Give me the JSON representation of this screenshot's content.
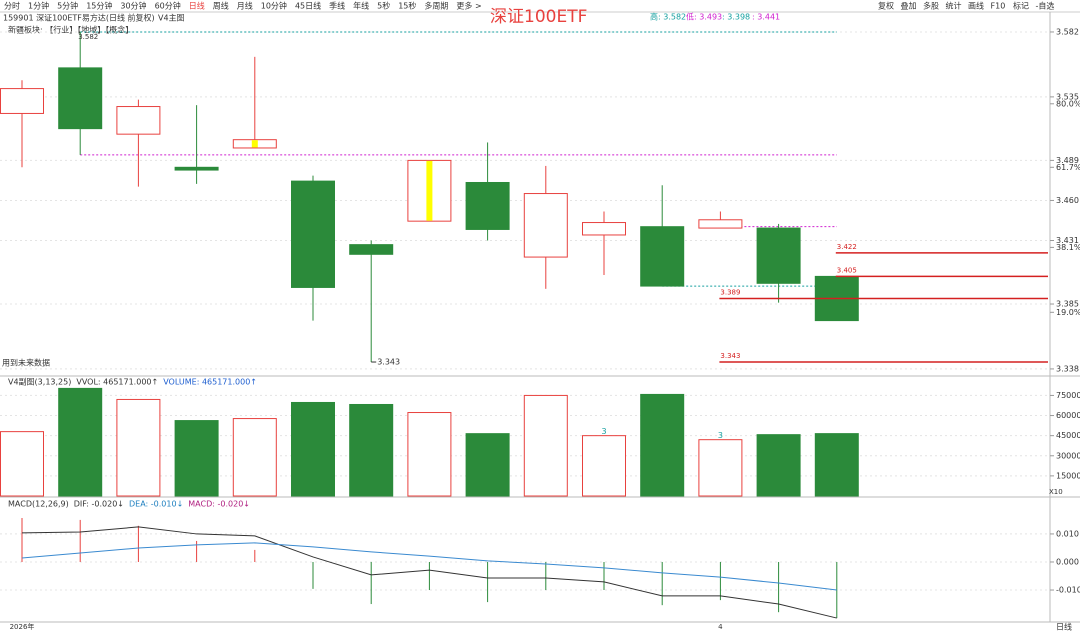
{
  "toolbar": {
    "left": [
      "分时",
      "1分钟",
      "5分钟",
      "15分钟",
      "30分钟",
      "60分钟",
      "日线",
      "周线",
      "月线",
      "10分钟",
      "45日线",
      "季线",
      "年线",
      "5秒",
      "15秒",
      "多周期",
      "更多 >"
    ],
    "active": 6,
    "right": [
      "复权",
      "叠加",
      "多股",
      "统计",
      "画线",
      "F10",
      "标记",
      "-自选"
    ]
  },
  "overlay_title": "深证100ETF",
  "stats": [
    {
      "value": 3.582,
      "label": "高: 3.582",
      "color": "#16a0a0"
    },
    {
      "value": 3.493,
      "label": "低: 3.493",
      "color": "#d020d0"
    },
    {
      "value": 3.398,
      "label": ": 3.398",
      "color": "#16a0a0"
    },
    {
      "value": 3.441,
      "label": ": 3.441",
      "color": "#d020d0"
    }
  ],
  "header": {
    "code_line": "159901 深证100ETF易方达(日线 前复权)",
    "indicator": "V4主图",
    "sector": "新疆板块: 【行业】【地域】【概念】",
    "note": "用到未来数据"
  },
  "chart_data": [
    {
      "type": "candlestick",
      "open": [
        3.523,
        3.556,
        3.508,
        3.484,
        3.498,
        3.474,
        3.428,
        3.445,
        3.473,
        3.419,
        3.435,
        3.441,
        3.44,
        3.44,
        3.405
      ],
      "high": [
        3.547,
        3.582,
        3.533,
        3.529,
        3.564,
        3.478,
        3.431,
        3.489,
        3.502,
        3.485,
        3.452,
        3.471,
        3.452,
        3.443,
        3.405
      ],
      "low": [
        3.484,
        3.493,
        3.47,
        3.472,
        3.498,
        3.373,
        3.343,
        3.445,
        3.431,
        3.396,
        3.406,
        3.398,
        3.44,
        3.386,
        3.373
      ],
      "close": [
        3.541,
        3.512,
        3.528,
        3.482,
        3.504,
        3.397,
        3.421,
        3.489,
        3.439,
        3.465,
        3.444,
        3.398,
        3.446,
        3.4,
        3.373
      ],
      "up_color": "#e8413e",
      "down_color": "#2b8a3a",
      "highlight_color": "#ffff00",
      "ylim": [
        3.3336,
        3.5856
      ],
      "yticks": [
        3.338,
        3.385,
        3.431,
        {
          "value": 3.46,
          "label": "3.460"
        },
        3.489,
        3.535,
        3.582
      ],
      "pct_ticks": [
        {
          "value": 3.379,
          "label": "19.0%"
        },
        {
          "value": 3.426,
          "label": "38.1%"
        },
        {
          "value": 3.484,
          "label": "61.7%"
        },
        {
          "value": 3.53,
          "label": "80.0%"
        }
      ],
      "levels": [
        3.422,
        3.405,
        3.389,
        3.343
      ],
      "level_color": "#d42020",
      "grid": true
    },
    {
      "type": "bar",
      "header": [
        {
          "text": "V4副图(3,13,25)",
          "color": "#333333"
        },
        {
          "text": "VVOL: 465171.000↑",
          "color": "#333333"
        },
        {
          "text": "VOLUME: 465171.000↑",
          "color": "#2060d0"
        }
      ],
      "values": [
        48000,
        80250,
        72000,
        56250,
        57750,
        69750,
        68250,
        62250,
        46500,
        75000,
        45000,
        75750,
        42000,
        45750,
        46517
      ],
      "ylim": [
        0,
        88000
      ],
      "yticks": [
        15000,
        30000,
        45000,
        60000,
        75000
      ],
      "unit_label": "X10",
      "annotations": [
        "3",
        "3"
      ],
      "grid": true
    },
    {
      "type": "macd",
      "header": [
        {
          "text": "MACD(12,26,9)",
          "color": "#333333"
        },
        {
          "text": "DIF: -0.020↓",
          "color": "#333333"
        },
        {
          "text": "DEA: -0.010↓",
          "color": "#2080c0"
        },
        {
          "text": "MACD: -0.020↓",
          "color": "#b02080"
        }
      ],
      "categories": [
        "2026年",
        null,
        null,
        null,
        null,
        null,
        null,
        null,
        null,
        null,
        null,
        null,
        "4",
        null,
        null
      ],
      "series": [
        {
          "color": "#333333",
          "values": [
            0.0104,
            0.0107,
            0.0125,
            0.01,
            0.0093,
            0.0018,
            -0.0046,
            -0.0029,
            -0.0057,
            -0.0057,
            -0.0071,
            -0.0121,
            -0.0121,
            -0.015,
            -0.02
          ]
        },
        {
          "color": "#3a8ad0",
          "values": [
            0.0014,
            0.0032,
            0.005,
            0.0061,
            0.0068,
            0.0054,
            0.0036,
            0.0021,
            0.0004,
            -0.0007,
            -0.0021,
            -0.0039,
            -0.0054,
            -0.0075,
            -0.01
          ]
        }
      ],
      "bars": {
        "up_color": "#e8413e",
        "down_color": "#2b8a3a",
        "values": [
          0.0157,
          0.015,
          0.0129,
          0.0075,
          0.0043,
          -0.0096,
          -0.015,
          -0.01,
          -0.0143,
          -0.01,
          -0.01,
          -0.0154,
          -0.0136,
          -0.0179,
          -0.02
        ]
      },
      "ylim": [
        -0.0214,
        0.0221
      ],
      "yticks": [
        {
          "value": -0.01,
          "label": "-0.010"
        },
        {
          "value": 0,
          "label": "0.000"
        },
        {
          "value": 0.01,
          "label": "0.010"
        }
      ],
      "period_label": "日线",
      "grid": true
    }
  ]
}
